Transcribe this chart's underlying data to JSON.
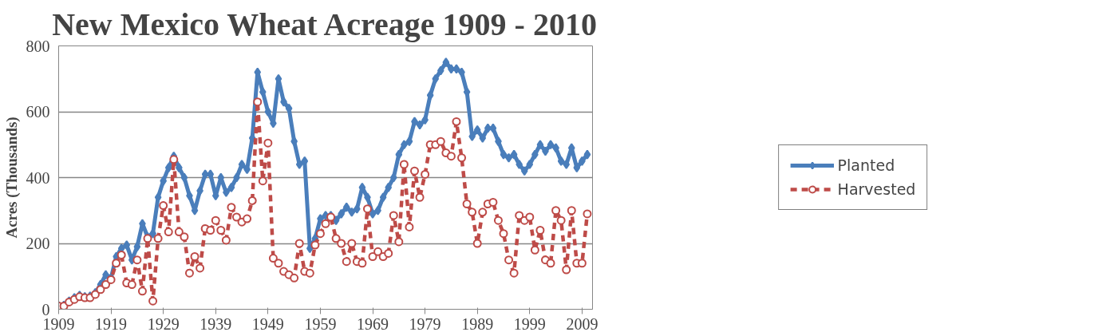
{
  "chart_data": {
    "type": "line",
    "title": "New Mexico Wheat Acreage 1909 - 2010",
    "ylabel": "Acres (Thousands)",
    "x": [
      1909,
      1910,
      1911,
      1912,
      1913,
      1914,
      1915,
      1916,
      1917,
      1918,
      1919,
      1920,
      1921,
      1922,
      1923,
      1924,
      1925,
      1926,
      1927,
      1928,
      1929,
      1930,
      1931,
      1932,
      1933,
      1934,
      1935,
      1936,
      1937,
      1938,
      1939,
      1940,
      1941,
      1942,
      1943,
      1944,
      1945,
      1946,
      1947,
      1948,
      1949,
      1950,
      1951,
      1952,
      1953,
      1954,
      1955,
      1956,
      1957,
      1958,
      1959,
      1960,
      1961,
      1962,
      1963,
      1964,
      1965,
      1966,
      1967,
      1968,
      1969,
      1970,
      1971,
      1972,
      1973,
      1974,
      1975,
      1976,
      1977,
      1978,
      1979,
      1980,
      1981,
      1982,
      1983,
      1984,
      1985,
      1986,
      1987,
      1988,
      1989,
      1990,
      1991,
      1992,
      1993,
      1994,
      1995,
      1996,
      1997,
      1998,
      1999,
      2000,
      2001,
      2002,
      2003,
      2004,
      2005,
      2006,
      2007,
      2008,
      2009,
      2010
    ],
    "series": [
      {
        "name": "Planted",
        "color": "#4a7ebb",
        "marker": "diamond",
        "line_style": "solid",
        "values": [
          10,
          12,
          25,
          35,
          42,
          38,
          40,
          50,
          75,
          105,
          95,
          160,
          185,
          195,
          150,
          190,
          260,
          220,
          230,
          340,
          390,
          430,
          465,
          430,
          400,
          345,
          300,
          360,
          410,
          410,
          345,
          400,
          355,
          370,
          400,
          440,
          425,
          520,
          720,
          660,
          600,
          565,
          700,
          630,
          610,
          510,
          440,
          450,
          185,
          215,
          275,
          285,
          285,
          270,
          290,
          310,
          295,
          305,
          370,
          340,
          290,
          300,
          340,
          370,
          400,
          470,
          500,
          510,
          570,
          560,
          575,
          650,
          700,
          725,
          750,
          730,
          730,
          720,
          660,
          525,
          545,
          520,
          550,
          550,
          510,
          470,
          460,
          470,
          440,
          420,
          440,
          470,
          500,
          480,
          500,
          490,
          450,
          440,
          490,
          430,
          450,
          470
        ]
      },
      {
        "name": "Harvested",
        "color": "#be4b48",
        "marker": "circle",
        "line_style": "dashed",
        "values": [
          10,
          10,
          22,
          30,
          38,
          35,
          35,
          45,
          60,
          75,
          90,
          140,
          165,
          80,
          75,
          150,
          55,
          215,
          25,
          215,
          315,
          235,
          455,
          235,
          220,
          110,
          160,
          125,
          245,
          240,
          270,
          240,
          210,
          310,
          280,
          265,
          275,
          330,
          630,
          390,
          505,
          155,
          140,
          115,
          105,
          95,
          200,
          115,
          110,
          195,
          230,
          260,
          280,
          215,
          200,
          145,
          200,
          145,
          140,
          305,
          160,
          175,
          160,
          170,
          285,
          205,
          440,
          250,
          420,
          340,
          410,
          500,
          500,
          510,
          475,
          465,
          570,
          460,
          320,
          295,
          200,
          295,
          320,
          325,
          270,
          230,
          150,
          110,
          285,
          270,
          280,
          180,
          240,
          150,
          140,
          300,
          270,
          120,
          300,
          140,
          140,
          290
        ]
      }
    ],
    "xlim": [
      1909,
      2011
    ],
    "xticks": [
      1909,
      1919,
      1929,
      1939,
      1949,
      1959,
      1969,
      1979,
      1989,
      1999,
      2009
    ],
    "ylim": [
      0,
      800
    ],
    "yticks": [
      0,
      200,
      400,
      600,
      800
    ],
    "grid": "y",
    "legend": "right"
  }
}
